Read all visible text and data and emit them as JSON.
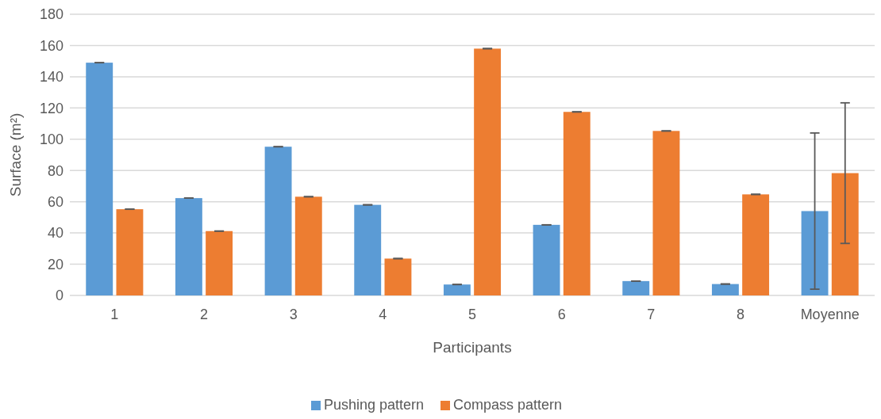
{
  "chart_data": {
    "type": "bar",
    "xlabel": "Participants",
    "ylabel": "Surface (m²)",
    "categories": [
      "1",
      "2",
      "3",
      "4",
      "5",
      "6",
      "7",
      "8",
      "Moyenne"
    ],
    "series": [
      {
        "name": "Pushing pattern",
        "color": "#5b9bd5",
        "values": [
          149,
          62.3,
          95.2,
          58,
          7,
          45.2,
          9.2,
          7.3,
          54
        ],
        "errors": [
          0,
          0,
          0,
          0,
          0,
          0,
          0,
          0,
          50
        ]
      },
      {
        "name": "Compass pattern",
        "color": "#ed7d31",
        "values": [
          55.2,
          41.2,
          63.2,
          23.6,
          158,
          117.5,
          105.3,
          64.7,
          78.3
        ],
        "errors": [
          0,
          0,
          0,
          0,
          0,
          0,
          0,
          0,
          45
        ]
      }
    ],
    "ylim": [
      0,
      180
    ],
    "yticks": [
      0,
      20,
      40,
      60,
      80,
      100,
      120,
      140,
      160,
      180
    ],
    "grid": "y",
    "legend": "bottom"
  }
}
